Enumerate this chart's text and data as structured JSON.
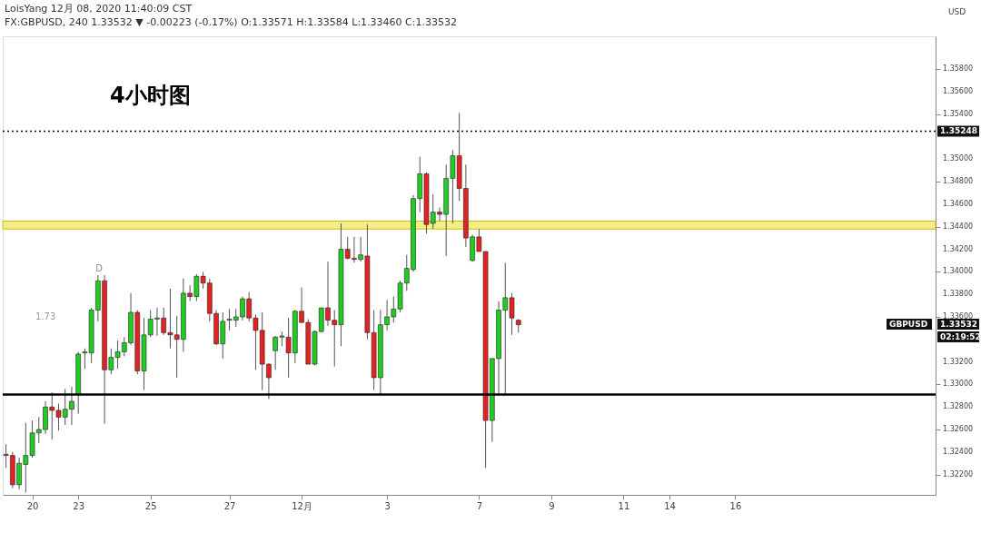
{
  "chart_data": {
    "type": "candlestick",
    "title": "4小时图",
    "annotations": [
      "LoisYang 12月 08, 2020 11:40:09 CST",
      "FX:GBPUSD, 240 1.33532 ▼ -0.00223 (-0.17%) O:1.33571 H:1.33584 L:1.33460 C:1.33532",
      "D",
      "1.73",
      "USD",
      "GBPUSD",
      "1.33532",
      "02:19:52"
    ],
    "categories": [
      null,
      null,
      null,
      null,
      "20",
      null,
      null,
      null,
      null,
      null,
      null,
      "23",
      null,
      null,
      null,
      null,
      null,
      null,
      null,
      null,
      null,
      null,
      "25",
      null,
      null,
      null,
      null,
      null,
      null,
      null,
      null,
      null,
      null,
      null,
      "27",
      null,
      null,
      null,
      null,
      null,
      null,
      null,
      null,
      null,
      null,
      "12月",
      null,
      null,
      null,
      null,
      null,
      null,
      null,
      null,
      null,
      null,
      null,
      null,
      "3",
      null,
      null,
      null,
      null,
      null,
      null,
      null,
      null,
      null,
      null,
      null,
      null,
      null,
      "7",
      null,
      null,
      null,
      null,
      null,
      null,
      null,
      null,
      null,
      null,
      "9",
      null,
      null,
      null,
      null,
      null,
      null,
      null,
      null,
      null,
      null,
      "11",
      null,
      null,
      null,
      null,
      null,
      null,
      "14",
      null,
      null,
      null,
      null,
      null,
      null,
      null,
      null,
      null,
      "16",
      null,
      null,
      null,
      null,
      null,
      null,
      null,
      null,
      null,
      null,
      null,
      null,
      null,
      null,
      null,
      null,
      null,
      null,
      null,
      null,
      null,
      null,
      null,
      null,
      null,
      null,
      null,
      null,
      null,
      null
    ],
    "ohlc": [
      [
        1.3238,
        1.3247,
        1.3226,
        1.3237
      ],
      [
        1.3237,
        1.324,
        1.3208,
        1.3211
      ],
      [
        1.3211,
        1.3235,
        1.3207,
        1.323
      ],
      [
        1.3229,
        1.3266,
        1.3204,
        1.3237
      ],
      [
        1.3237,
        1.3268,
        1.3235,
        1.3257
      ],
      [
        1.3257,
        1.3271,
        1.3248,
        1.326
      ],
      [
        1.326,
        1.3285,
        1.3256,
        1.328
      ],
      [
        1.328,
        1.3293,
        1.3251,
        1.3277
      ],
      [
        1.3277,
        1.3283,
        1.3259,
        1.3271
      ],
      [
        1.3271,
        1.3296,
        1.3264,
        1.3278
      ],
      [
        1.3278,
        1.3298,
        1.3264,
        1.3285
      ],
      [
        1.3291,
        1.3329,
        1.3274,
        1.3327
      ],
      [
        1.3328,
        1.3332,
        1.3314,
        1.3329
      ],
      [
        1.3328,
        1.3368,
        1.3319,
        1.3366
      ],
      [
        1.3366,
        1.3397,
        1.3356,
        1.3392
      ],
      [
        1.3392,
        1.3397,
        1.3265,
        1.3313
      ],
      [
        1.3313,
        1.3332,
        1.3309,
        1.3324
      ],
      [
        1.3324,
        1.3339,
        1.3314,
        1.3329
      ],
      [
        1.3329,
        1.3342,
        1.3325,
        1.3337
      ],
      [
        1.3337,
        1.3381,
        1.3335,
        1.3364
      ],
      [
        1.3364,
        1.3366,
        1.3309,
        1.3312
      ],
      [
        1.3312,
        1.3359,
        1.3295,
        1.3344
      ],
      [
        1.3344,
        1.3366,
        1.3342,
        1.3358
      ],
      [
        1.3358,
        1.3368,
        1.3343,
        1.3359
      ],
      [
        1.3359,
        1.3368,
        1.3344,
        1.3346
      ],
      [
        1.3346,
        1.3385,
        1.3332,
        1.3344
      ],
      [
        1.3344,
        1.3361,
        1.3306,
        1.334
      ],
      [
        1.334,
        1.3394,
        1.3329,
        1.3381
      ],
      [
        1.3381,
        1.3388,
        1.3374,
        1.3378
      ],
      [
        1.3378,
        1.3398,
        1.3374,
        1.3396
      ],
      [
        1.3396,
        1.34,
        1.3385,
        1.339
      ],
      [
        1.339,
        1.3394,
        1.3356,
        1.3363
      ],
      [
        1.3363,
        1.3366,
        1.3335,
        1.3336
      ],
      [
        1.3336,
        1.3364,
        1.3323,
        1.3356
      ],
      [
        1.3357,
        1.3367,
        1.3348,
        1.3358
      ],
      [
        1.3357,
        1.3367,
        1.3351,
        1.336
      ],
      [
        1.336,
        1.3378,
        1.3357,
        1.3376
      ],
      [
        1.3376,
        1.3382,
        1.3356,
        1.3359
      ],
      [
        1.3359,
        1.3362,
        1.3313,
        1.3348
      ],
      [
        1.3348,
        1.3364,
        1.3295,
        1.3318
      ],
      [
        1.3318,
        1.3319,
        1.3287,
        1.3306
      ],
      [
        1.333,
        1.3343,
        1.3313,
        1.3342
      ],
      [
        1.3342,
        1.3347,
        1.3334,
        1.3343
      ],
      [
        1.3342,
        1.3359,
        1.3306,
        1.3328
      ],
      [
        1.3328,
        1.3366,
        1.3319,
        1.3365
      ],
      [
        1.3365,
        1.3386,
        1.3355,
        1.3355
      ],
      [
        1.3355,
        1.3358,
        1.3318,
        1.3318
      ],
      [
        1.3318,
        1.3348,
        1.3317,
        1.3347
      ],
      [
        1.3347,
        1.3368,
        1.3346,
        1.3368
      ],
      [
        1.3368,
        1.3409,
        1.3352,
        1.3357
      ],
      [
        1.3357,
        1.3366,
        1.3316,
        1.3353
      ],
      [
        1.3353,
        1.3443,
        1.3334,
        1.342
      ],
      [
        1.342,
        1.3431,
        1.3411,
        1.3412
      ],
      [
        1.3412,
        1.3431,
        1.3408,
        1.3411
      ],
      [
        1.3411,
        1.3431,
        1.3409,
        1.3415
      ],
      [
        1.3414,
        1.3442,
        1.334,
        1.3346
      ],
      [
        1.3346,
        1.3366,
        1.3295,
        1.3306
      ],
      [
        1.3306,
        1.3366,
        1.3291,
        1.3353
      ],
      [
        1.3353,
        1.3375,
        1.3348,
        1.336
      ],
      [
        1.336,
        1.3378,
        1.3355,
        1.3367
      ],
      [
        1.3367,
        1.3392,
        1.3364,
        1.339
      ],
      [
        1.339,
        1.3415,
        1.3383,
        1.3403
      ],
      [
        1.3402,
        1.3468,
        1.34,
        1.3465
      ],
      [
        1.3465,
        1.3502,
        1.3453,
        1.3487
      ],
      [
        1.3487,
        1.3488,
        1.3434,
        1.3442
      ],
      [
        1.3443,
        1.3469,
        1.3438,
        1.3453
      ],
      [
        1.3453,
        1.3457,
        1.3445,
        1.3451
      ],
      [
        1.3451,
        1.3495,
        1.3414,
        1.3483
      ],
      [
        1.3483,
        1.3508,
        1.3443,
        1.3503
      ],
      [
        1.3503,
        1.3541,
        1.3463,
        1.3474
      ],
      [
        1.3474,
        1.3495,
        1.3422,
        1.343
      ],
      [
        1.341,
        1.3433,
        1.3409,
        1.3431
      ],
      [
        1.3431,
        1.3438,
        1.3418,
        1.3418
      ],
      [
        1.3418,
        1.3418,
        1.3226,
        1.3268
      ],
      [
        1.3268,
        1.3323,
        1.3249,
        1.3323
      ],
      [
        1.3323,
        1.3374,
        1.3291,
        1.3366
      ],
      [
        1.3366,
        1.3408,
        1.3291,
        1.3377
      ],
      [
        1.3377,
        1.3381,
        1.3344,
        1.3359
      ],
      [
        1.3357,
        1.3358,
        1.3346,
        1.3353
      ],
      null,
      null,
      null,
      null,
      null,
      null,
      null,
      null,
      null,
      null,
      null,
      null,
      null,
      null,
      null,
      null,
      null,
      null,
      null,
      null,
      null,
      null,
      null,
      null,
      null,
      null,
      null,
      null,
      null,
      null,
      null,
      null,
      null,
      null,
      null,
      null,
      null,
      null,
      null,
      null,
      null,
      null,
      null,
      null,
      null,
      null,
      null,
      null,
      null,
      null,
      null,
      null,
      null,
      null,
      null,
      null,
      null,
      null,
      null,
      null,
      null,
      null,
      null
    ],
    "colors": [
      "#e52222",
      "#e52222",
      "#22cc22",
      "#22cc22",
      "#22cc22",
      "#22cc22",
      "#22cc22",
      "#e52222",
      "#e52222",
      "#22cc22",
      "#22cc22",
      "#22cc22",
      "#22cc22",
      "#22cc22",
      "#22cc22",
      "#e52222",
      "#22cc22",
      "#22cc22",
      "#22cc22",
      "#22cc22",
      "#e52222",
      "#22cc22",
      "#22cc22",
      "#22cc22",
      "#e52222",
      "#e52222",
      "#e52222",
      "#22cc22",
      "#e52222",
      "#22cc22",
      "#e52222",
      "#e52222",
      "#e52222",
      "#22cc22",
      "#22cc22",
      "#22cc22",
      "#22cc22",
      "#e52222",
      "#e52222",
      "#e52222",
      "#e52222",
      "#22cc22",
      "#22cc22",
      "#e52222",
      "#22cc22",
      "#e52222",
      "#e52222",
      "#22cc22",
      "#22cc22",
      "#e52222",
      "#e52222",
      "#22cc22",
      "#e52222",
      "#e52222",
      "#22cc22",
      "#e52222",
      "#e52222",
      "#22cc22",
      "#22cc22",
      "#22cc22",
      "#22cc22",
      "#22cc22",
      "#22cc22",
      "#22cc22",
      "#e52222",
      "#22cc22",
      "#e52222",
      "#22cc22",
      "#22cc22",
      "#e52222",
      "#e52222",
      "#22cc22",
      "#e52222",
      "#e52222",
      "#22cc22",
      "#22cc22",
      "#22cc22",
      "#e52222",
      "#e52222",
      null,
      null,
      null,
      null,
      null,
      null,
      null,
      null,
      null,
      null,
      null,
      null,
      null,
      null,
      null,
      null,
      null,
      null,
      null,
      null,
      null,
      null,
      null,
      null,
      null,
      null,
      null,
      null,
      null,
      null,
      null,
      null,
      null,
      null,
      null,
      null,
      null,
      null,
      null,
      null,
      null,
      null,
      null,
      null,
      null,
      null,
      null,
      null,
      null,
      null,
      null,
      null,
      null,
      null,
      null,
      null,
      null,
      null,
      null,
      null,
      null,
      null,
      null
    ],
    "ylim": [
      1.3202,
      1.3609
    ],
    "yticks": [
      {
        "value": 1.322,
        "label": "1.32200"
      },
      {
        "value": 1.324,
        "label": "1.32400"
      },
      {
        "value": 1.326,
        "label": "1.32600"
      },
      {
        "value": 1.328,
        "label": "1.32800"
      },
      {
        "value": 1.33,
        "label": "1.33000"
      },
      {
        "value": 1.332,
        "label": "1.33200"
      },
      {
        "value": 1.336,
        "label": "1.33600"
      },
      {
        "value": 1.338,
        "label": "1.33800"
      },
      {
        "value": 1.34,
        "label": "1.34000"
      },
      {
        "value": 1.342,
        "label": "1.34200"
      },
      {
        "value": 1.344,
        "label": "1.34400"
      },
      {
        "value": 1.346,
        "label": "1.34600"
      },
      {
        "value": 1.348,
        "label": "1.34800"
      },
      {
        "value": 1.35,
        "label": "1.35000"
      },
      {
        "value": 1.354,
        "label": "1.35400"
      },
      {
        "value": 1.356,
        "label": "1.35600"
      },
      {
        "value": 1.358,
        "label": "1.35800"
      }
    ],
    "ref_lines": [
      {
        "axis": "y",
        "value": 1.35248,
        "label": "1.35248",
        "color": "#000000",
        "line_style": "dotted"
      },
      {
        "axis": "y",
        "value": 1.3291,
        "color": "#000000",
        "line_style": "solid"
      }
    ],
    "bands": [
      {
        "axis": "y",
        "from": 1.3438,
        "to": 1.3445,
        "color": "#f7ec7a"
      }
    ],
    "grid": false
  }
}
